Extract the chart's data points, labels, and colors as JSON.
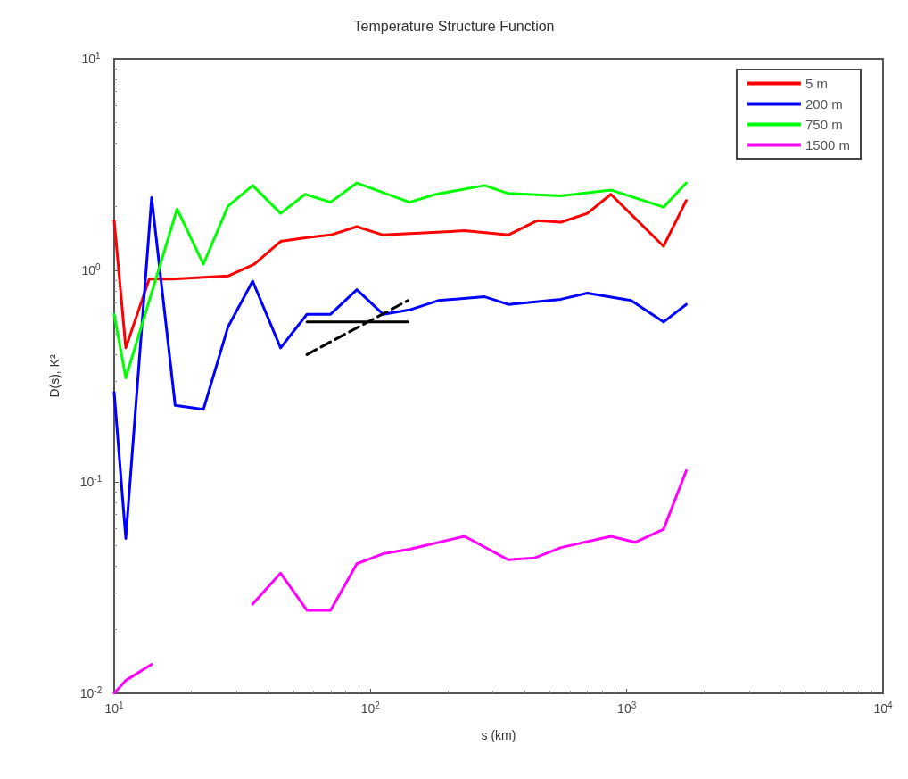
{
  "chart_data": {
    "type": "line",
    "title": "Temperature Structure Function",
    "xlabel": "s (km)",
    "ylabel": "D(s), K²",
    "log": "xy",
    "xlim": [
      10,
      10000
    ],
    "ylim": [
      0.01,
      10
    ],
    "xticks": [
      {
        "value": 10,
        "label": "10$^{1}$"
      },
      {
        "value": 100,
        "label": "10$^{2}$"
      },
      {
        "value": 1000,
        "label": "10$^{3}$"
      },
      {
        "value": 10000,
        "label": "10$^{4}$"
      }
    ],
    "yticks": [
      {
        "value": 0.01,
        "label": "10$^{-2}$"
      },
      {
        "value": 0.1,
        "label": "10$^{-1}$"
      },
      {
        "value": 1,
        "label": "10$^{0}$"
      },
      {
        "value": 10,
        "label": "10$^{1}$"
      }
    ],
    "grid": false,
    "legend": "top right",
    "marker": "none",
    "line_style": "solid",
    "series": [
      {
        "name": "5 m",
        "color": "#ff0000",
        "x": [
          10,
          11.1,
          13.7,
          16.9,
          27.8,
          35.2,
          44.6,
          56.5,
          69.9,
          88.5,
          112,
          233,
          345,
          448,
          554,
          702,
          867,
          1392,
          1707
        ],
        "values": [
          1.72,
          0.43,
          0.91,
          0.91,
          0.94,
          1.07,
          1.37,
          1.43,
          1.47,
          1.61,
          1.47,
          1.54,
          1.47,
          1.72,
          1.69,
          1.86,
          2.29,
          1.3,
          2.14
        ]
      },
      {
        "name": "200 m",
        "color": "#0000ff",
        "x": [
          10,
          11.1,
          14,
          17.3,
          22.3,
          27.8,
          34.7,
          44.6,
          56.5,
          69.9,
          88.5,
          112,
          142,
          184,
          279,
          345,
          554,
          702,
          1040,
          1392,
          1707
        ],
        "values": [
          0.265,
          0.054,
          2.21,
          0.23,
          0.22,
          0.54,
          0.89,
          0.43,
          0.62,
          0.62,
          0.81,
          0.62,
          0.65,
          0.72,
          0.75,
          0.69,
          0.73,
          0.78,
          0.72,
          0.57,
          0.69
        ]
      },
      {
        "name": "750 m",
        "color": "#00ff00",
        "x": [
          10,
          11.1,
          17.6,
          22.3,
          27.8,
          34.7,
          44.6,
          55.6,
          69.9,
          88.5,
          142,
          180,
          279,
          345,
          554,
          867,
          1392,
          1707
        ],
        "values": [
          0.62,
          0.31,
          1.95,
          1.07,
          2.01,
          2.52,
          1.86,
          2.29,
          2.1,
          2.59,
          2.1,
          2.29,
          2.52,
          2.31,
          2.25,
          2.4,
          1.99,
          2.59
        ]
      },
      {
        "name": "1500 m",
        "color": "#ff00ff",
        "x": [
          10,
          11.1,
          14,
          17.3,
          22.3,
          27.8,
          34.7,
          44.6,
          56.5,
          69.9,
          88.5,
          112,
          142,
          233,
          345,
          438,
          554,
          867,
          1081,
          1392,
          1707
        ],
        "values": [
          0.01,
          0.0115,
          0.0137,
          null,
          null,
          null,
          0.0264,
          0.037,
          0.0247,
          0.0247,
          0.041,
          0.0457,
          0.048,
          0.0553,
          0.0428,
          0.0437,
          0.0489,
          0.0553,
          0.0518,
          0.0597,
          0.113
        ]
      },
      {
        "color": "#000000",
        "x": [
          56.5,
          140
        ],
        "values": [
          0.57,
          0.57
        ]
      },
      {
        "color": "#000000",
        "line_style": "dashed",
        "x": [
          56.5,
          140
        ],
        "values": [
          0.4,
          0.72
        ]
      }
    ]
  }
}
